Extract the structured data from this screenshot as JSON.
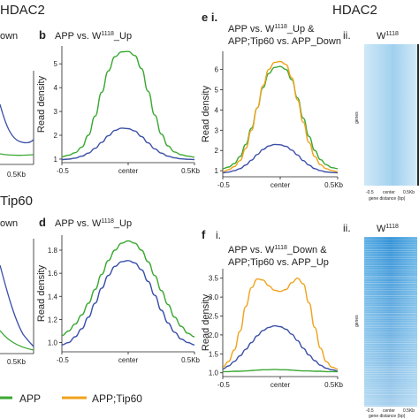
{
  "sections": {
    "hdac2_left": "HDAC2",
    "hdac2_right": "HDAC2",
    "tip60": "Tip60"
  },
  "fragments": {
    "top_left": "own",
    "bottom_left": "own",
    "left_x_tick": "0.5Kb"
  },
  "panel_labels": {
    "b": "b",
    "d": "d",
    "e": "e i.",
    "f": "f",
    "f_i": "i.",
    "e_ii": "ii.",
    "f_ii": "ii."
  },
  "heatmaps": {
    "top_title": "W1118",
    "bottom_title": "W1118",
    "ylabel": "genes",
    "xlabel": "gene distance (bp)",
    "xticks": [
      "-0.5",
      "center",
      "0.5Kb"
    ]
  },
  "legend": [
    {
      "label": "APP",
      "color": "#3aa832"
    },
    {
      "label": "APP;Tip60",
      "color": "#f0a21c"
    }
  ],
  "colors": {
    "APP": "#3aa832",
    "APP_Tip60": "#f0a21c",
    "W1118": "#3b4fa8"
  },
  "chart_data": [
    {
      "id": "b",
      "type": "line",
      "title": "APP vs. W1118_Up",
      "xlabel": "",
      "ylabel": "Read density",
      "xticks": [
        "-0.5",
        "center",
        "0.5Kb"
      ],
      "yticks": [
        1,
        2,
        3,
        4,
        5
      ],
      "xlim": [
        -0.5,
        0.5
      ],
      "ylim": [
        0.85,
        5.75
      ],
      "grid": false,
      "series": [
        {
          "key": "green",
          "color": "#3aa832",
          "values": [
            1.1,
            1.16,
            1.27,
            1.5,
            2.0,
            2.8,
            3.8,
            4.7,
            5.3,
            5.5,
            5.52,
            5.35,
            4.8,
            3.85,
            2.85,
            2.05,
            1.55,
            1.3,
            1.18,
            1.12,
            1.08
          ]
        },
        {
          "key": "blue",
          "color": "#3b4fa8",
          "values": [
            0.98,
            1.0,
            1.04,
            1.12,
            1.25,
            1.45,
            1.7,
            1.98,
            2.2,
            2.3,
            2.28,
            2.18,
            1.95,
            1.68,
            1.43,
            1.25,
            1.12,
            1.05,
            1.01,
            0.99,
            0.98
          ]
        }
      ]
    },
    {
      "id": "d",
      "type": "line",
      "title": "APP vs. W1118_Up",
      "xlabel": "",
      "ylabel": "Read density",
      "xticks": [
        "-0.5",
        "center",
        "0.5Kb"
      ],
      "yticks": [
        1.0,
        1.2,
        1.4,
        1.6,
        1.8
      ],
      "xlim": [
        -0.5,
        0.5
      ],
      "ylim": [
        0.92,
        1.93
      ],
      "grid": false,
      "series": [
        {
          "key": "green",
          "color": "#3aa832",
          "values": [
            1.06,
            1.1,
            1.16,
            1.24,
            1.34,
            1.46,
            1.59,
            1.71,
            1.8,
            1.86,
            1.88,
            1.86,
            1.8,
            1.7,
            1.58,
            1.45,
            1.33,
            1.22,
            1.14,
            1.08,
            1.05
          ]
        },
        {
          "key": "blue",
          "color": "#3b4fa8",
          "values": [
            0.98,
            1.0,
            1.05,
            1.12,
            1.22,
            1.34,
            1.47,
            1.58,
            1.66,
            1.7,
            1.71,
            1.69,
            1.63,
            1.53,
            1.41,
            1.28,
            1.17,
            1.09,
            1.03,
            1.0,
            0.98
          ]
        }
      ]
    },
    {
      "id": "e",
      "type": "line",
      "title": "APP vs. W1118_Up & APP;Tip60 vs. APP_Down",
      "xlabel": "",
      "ylabel": "Read density",
      "xticks": [
        "-0.5",
        "center",
        "0.5Kb"
      ],
      "yticks": [
        1,
        2,
        3,
        4,
        5,
        6
      ],
      "xlim": [
        -0.5,
        0.5
      ],
      "ylim": [
        0.7,
        6.9
      ],
      "grid": false,
      "series": [
        {
          "key": "green",
          "color": "#3aa832",
          "values": [
            1.1,
            1.18,
            1.35,
            1.7,
            2.3,
            3.1,
            4.1,
            5.1,
            5.8,
            6.1,
            6.15,
            6.0,
            5.5,
            4.6,
            3.6,
            2.7,
            2.0,
            1.55,
            1.3,
            1.15,
            1.1
          ]
        },
        {
          "key": "orange",
          "color": "#f0a21c",
          "values": [
            0.95,
            1.05,
            1.2,
            1.5,
            2.1,
            3.0,
            4.1,
            5.2,
            6.0,
            6.35,
            6.4,
            6.25,
            5.6,
            4.5,
            3.4,
            2.4,
            1.7,
            1.3,
            1.1,
            1.0,
            0.95
          ]
        },
        {
          "key": "blue",
          "color": "#3b4fa8",
          "values": [
            0.9,
            0.93,
            1.0,
            1.1,
            1.28,
            1.52,
            1.8,
            2.05,
            2.22,
            2.3,
            2.28,
            2.2,
            2.02,
            1.78,
            1.5,
            1.28,
            1.1,
            1.0,
            0.94,
            0.91,
            0.9
          ]
        }
      ]
    },
    {
      "id": "f",
      "type": "line",
      "title": "APP vs. W1118_Down & APP;Tip60 vs. APP_Up",
      "xlabel": "",
      "ylabel": "Read density",
      "xticks": [
        "-0.5",
        "center",
        "0.5Kb"
      ],
      "yticks": [
        1.0,
        1.5,
        2.0,
        2.5,
        3.0,
        3.5
      ],
      "xlim": [
        -0.5,
        0.5
      ],
      "ylim": [
        0.9,
        3.75
      ],
      "grid": false,
      "series": [
        {
          "key": "orange",
          "color": "#f0a21c",
          "values": [
            1.15,
            1.3,
            1.6,
            2.1,
            2.75,
            3.25,
            3.48,
            3.45,
            3.3,
            3.18,
            3.15,
            3.2,
            3.38,
            3.5,
            3.35,
            2.85,
            2.2,
            1.65,
            1.3,
            1.15,
            1.1
          ]
        },
        {
          "key": "blue",
          "color": "#3b4fa8",
          "values": [
            1.1,
            1.18,
            1.3,
            1.45,
            1.62,
            1.8,
            1.98,
            2.12,
            2.2,
            2.24,
            2.22,
            2.15,
            2.02,
            1.85,
            1.65,
            1.47,
            1.32,
            1.2,
            1.12,
            1.08,
            1.05
          ]
        },
        {
          "key": "green",
          "color": "#3aa832",
          "values": [
            1.03,
            1.03,
            1.04,
            1.04,
            1.05,
            1.06,
            1.07,
            1.08,
            1.08,
            1.09,
            1.08,
            1.08,
            1.07,
            1.06,
            1.05,
            1.05,
            1.04,
            1.04,
            1.03,
            1.03,
            1.03
          ]
        }
      ]
    }
  ]
}
